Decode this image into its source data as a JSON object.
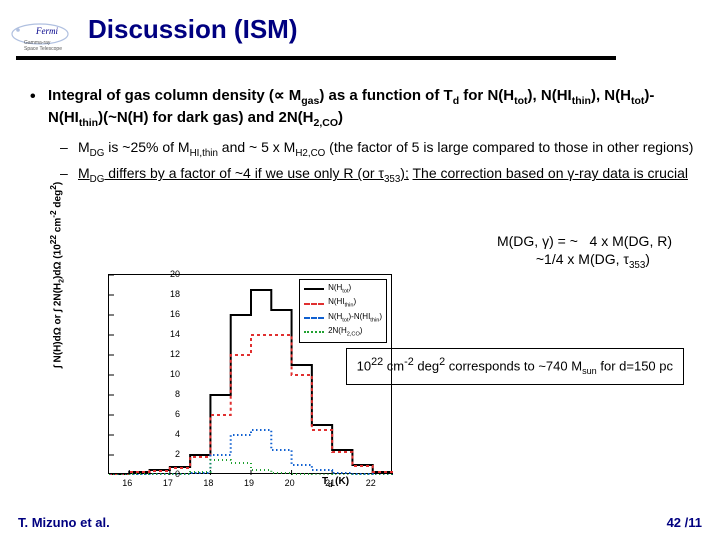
{
  "logo": {
    "name": "Fermi",
    "sub": "Gamma-ray\nSpace Telescope"
  },
  "title": "Discussion (ISM)",
  "bullet_main": "Integral of gas column density (∝ M<sub>gas</sub>) as a function of T<sub>d</sub> for N(H<sub>tot</sub>), N(HI<sub>thin</sub>), N(H<sub>tot</sub>)-N(HI<sub>thin</sub>)(~N(H) for dark gas) and 2N(H<sub>2,CO</sub>)",
  "sub1": "M<sub>DG</sub> is ~25% of M<sub>HI,thin</sub> and ~ 5 x M<sub>H2,CO</sub> (the factor of 5 is large compared to those in other regions)",
  "sub2_a": "M<sub>DG</sub> differs by a factor of ~4 if we use only R (or τ<sub>353</sub>);",
  "sub2_b": "The correction based on γ-ray data is crucial",
  "mdg": "M(DG, γ) = ~&nbsp;&nbsp;&nbsp;4 x M(DG, R)<br>&nbsp;&nbsp;&nbsp;&nbsp;&nbsp;&nbsp;&nbsp;&nbsp;&nbsp;&nbsp;~1/4 x M(DG, τ<sub>353</sub>)",
  "note": "10<sup>22</sup> cm<sup>-2</sup> deg<sup>2</sup> corresponds to ~740 M<sub>sun</sub> for d=150 pc",
  "footer_left": "T. Mizuno et al.",
  "footer_right": "42 /11",
  "chart": {
    "type": "step-histogram",
    "xlim": [
      15.5,
      22.5
    ],
    "ylim": [
      0,
      20
    ],
    "xticks": [
      16,
      17,
      18,
      19,
      20,
      21,
      22
    ],
    "yticks": [
      0,
      2,
      4,
      6,
      8,
      10,
      12,
      14,
      16,
      18,
      20
    ],
    "xlabel": "T<sub>d</sub> (K)",
    "ylabel_html": "∫ N(H)dΩ or ∫ 2N(H<sub>2</sub>)dΩ (10<sup>22</sup> cm<sup>-2</sup> deg<sup>2</sup>)",
    "bin_edges": [
      15.5,
      16,
      16.5,
      17,
      17.5,
      18,
      18.5,
      19,
      19.5,
      20,
      20.5,
      21,
      21.5,
      22,
      22.5
    ],
    "series": [
      {
        "name": "N(H<sub>tot</sub>)",
        "color": "#000000",
        "dash": "solid",
        "width": 2,
        "values": [
          0,
          0.3,
          0.5,
          0.8,
          2,
          8,
          16,
          18.5,
          16.5,
          11,
          5,
          2.5,
          1,
          0.3
        ]
      },
      {
        "name": "N(HI<sub>thin</sub>)",
        "color": "#e03030",
        "dash": "3,3",
        "width": 2,
        "values": [
          0,
          0.3,
          0.4,
          0.7,
          1.8,
          6,
          12,
          14,
          14,
          10,
          4.5,
          2.3,
          0.9,
          0.3
        ]
      },
      {
        "name": "N(H<sub>tot</sub>)-N(HI<sub>thin</sub>)",
        "color": "#1060d0",
        "dash": "1.5,2.5",
        "width": 2,
        "values": [
          0,
          0,
          0.1,
          0.1,
          0.2,
          2,
          4,
          4.5,
          2.5,
          1,
          0.5,
          0.2,
          0.1,
          0
        ]
      },
      {
        "name": "2N(H<sub>2,CO</sub>)",
        "color": "#20a030",
        "dash": "1,3",
        "width": 2,
        "values": [
          0,
          0.1,
          0.1,
          0.1,
          0.3,
          1.5,
          1.2,
          0.5,
          0.2,
          0.1,
          0.05,
          0.03,
          0.02,
          0
        ]
      }
    ]
  },
  "colors": {
    "title": "#000080",
    "footer": "#000080",
    "bg": "#ffffff"
  }
}
